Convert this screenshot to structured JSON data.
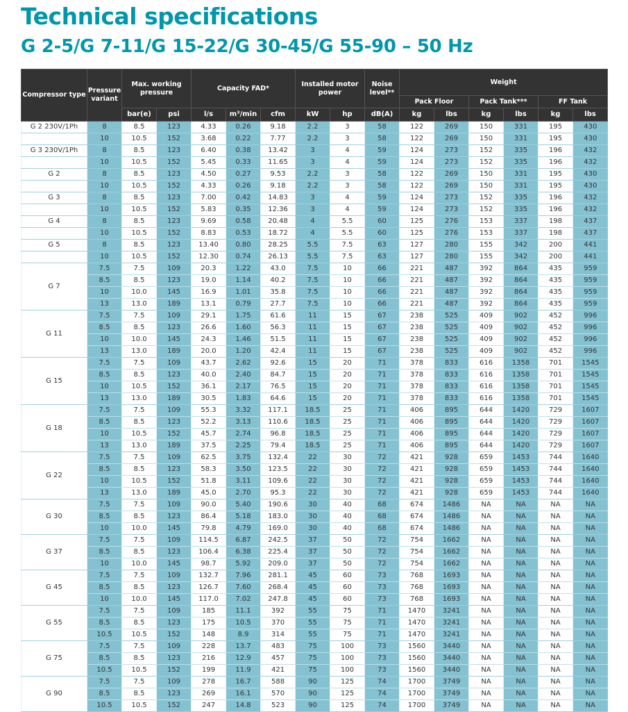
{
  "title": "Technical specifications",
  "subtitle": "G 2-5/G 7-11/G 15-22/G 30-45/G 55-90 – 50 Hz",
  "colors": {
    "accent": "#0097ad",
    "header_bg": "#333333",
    "shaded_column": "#84c1d1"
  },
  "header": {
    "compressor_type": "Compressor type",
    "pressure_variant": "Pressure variant",
    "max_working_pressure": "Max. working pressure",
    "capacity_fad": "Capacity FAD*",
    "installed_motor_power": "Installed motor power",
    "noise_level": "Noise level**",
    "weight": "Weight",
    "pack_floor": "Pack Floor",
    "pack_tank": "Pack Tank***",
    "ff_tank": "FF Tank",
    "units": [
      "bar(e)",
      "psi",
      "l/s",
      "m³/min",
      "cfm",
      "kW",
      "hp",
      "dB(A)",
      "kg",
      "lbs",
      "kg",
      "lbs",
      "kg",
      "lbs"
    ]
  },
  "groups": [
    {
      "type": "G 2 230V/1Ph",
      "rows": [
        [
          "8",
          "8.5",
          "123",
          "4.33",
          "0.26",
          "9.18",
          "2.2",
          "3",
          "58",
          "122",
          "269",
          "150",
          "331",
          "195",
          "430"
        ]
      ]
    },
    {
      "type": "",
      "rows": [
        [
          "10",
          "10.5",
          "152",
          "3.68",
          "0.22",
          "7.77",
          "2.2",
          "3",
          "58",
          "122",
          "269",
          "150",
          "331",
          "195",
          "430"
        ]
      ]
    },
    {
      "type": "G 3 230V/1Ph",
      "rows": [
        [
          "8",
          "8.5",
          "123",
          "6.40",
          "0.38",
          "13.42",
          "3",
          "4",
          "59",
          "124",
          "273",
          "152",
          "335",
          "196",
          "432"
        ]
      ]
    },
    {
      "type": "",
      "rows": [
        [
          "10",
          "10.5",
          "152",
          "5.45",
          "0.33",
          "11.65",
          "3",
          "4",
          "59",
          "124",
          "273",
          "152",
          "335",
          "196",
          "432"
        ]
      ]
    },
    {
      "type": "G 2",
      "rows": [
        [
          "8",
          "8.5",
          "123",
          "4.50",
          "0.27",
          "9.53",
          "2.2",
          "3",
          "58",
          "122",
          "269",
          "150",
          "331",
          "195",
          "430"
        ]
      ]
    },
    {
      "type": "",
      "rows": [
        [
          "10",
          "10.5",
          "152",
          "4.33",
          "0.26",
          "9.18",
          "2.2",
          "3",
          "58",
          "122",
          "269",
          "150",
          "331",
          "195",
          "430"
        ]
      ]
    },
    {
      "type": "G 3",
      "rows": [
        [
          "8",
          "8.5",
          "123",
          "7.00",
          "0.42",
          "14.83",
          "3",
          "4",
          "59",
          "124",
          "273",
          "152",
          "335",
          "196",
          "432"
        ]
      ]
    },
    {
      "type": "",
      "rows": [
        [
          "10",
          "10.5",
          "152",
          "5.83",
          "0.35",
          "12.36",
          "3",
          "4",
          "59",
          "124",
          "273",
          "152",
          "335",
          "196",
          "432"
        ]
      ]
    },
    {
      "type": "G 4",
      "rows": [
        [
          "8",
          "8.5",
          "123",
          "9.69",
          "0.58",
          "20.48",
          "4",
          "5.5",
          "60",
          "125",
          "276",
          "153",
          "337",
          "198",
          "437"
        ]
      ]
    },
    {
      "type": "",
      "rows": [
        [
          "10",
          "10.5",
          "152",
          "8.83",
          "0.53",
          "18.72",
          "4",
          "5.5",
          "60",
          "125",
          "276",
          "153",
          "337",
          "198",
          "437"
        ]
      ]
    },
    {
      "type": "G 5",
      "rows": [
        [
          "8",
          "8.5",
          "123",
          "13.40",
          "0.80",
          "28.25",
          "5.5",
          "7.5",
          "63",
          "127",
          "280",
          "155",
          "342",
          "200",
          "441"
        ]
      ]
    },
    {
      "type": "",
      "rows": [
        [
          "10",
          "10.5",
          "152",
          "12.30",
          "0.74",
          "26.13",
          "5.5",
          "7.5",
          "63",
          "127",
          "280",
          "155",
          "342",
          "200",
          "441"
        ]
      ]
    },
    {
      "type": "G 7",
      "rows": [
        [
          "7.5",
          "7.5",
          "109",
          "20.3",
          "1.22",
          "43.0",
          "7.5",
          "10",
          "66",
          "221",
          "487",
          "392",
          "864",
          "435",
          "959"
        ],
        [
          "8.5",
          "8.5",
          "123",
          "19.0",
          "1.14",
          "40.2",
          "7.5",
          "10",
          "66",
          "221",
          "487",
          "392",
          "864",
          "435",
          "959"
        ],
        [
          "10",
          "10.0",
          "145",
          "16.9",
          "1.01",
          "35.8",
          "7.5",
          "10",
          "66",
          "221",
          "487",
          "392",
          "864",
          "435",
          "959"
        ],
        [
          "13",
          "13.0",
          "189",
          "13.1",
          "0.79",
          "27.7",
          "7.5",
          "10",
          "66",
          "221",
          "487",
          "392",
          "864",
          "435",
          "959"
        ]
      ]
    },
    {
      "type": "G 11",
      "rows": [
        [
          "7.5",
          "7.5",
          "109",
          "29.1",
          "1.75",
          "61.6",
          "11",
          "15",
          "67",
          "238",
          "525",
          "409",
          "902",
          "452",
          "996"
        ],
        [
          "8.5",
          "8.5",
          "123",
          "26.6",
          "1.60",
          "56.3",
          "11",
          "15",
          "67",
          "238",
          "525",
          "409",
          "902",
          "452",
          "996"
        ],
        [
          "10",
          "10.0",
          "145",
          "24.3",
          "1.46",
          "51.5",
          "11",
          "15",
          "67",
          "238",
          "525",
          "409",
          "902",
          "452",
          "996"
        ],
        [
          "13",
          "13.0",
          "189",
          "20.0",
          "1.20",
          "42.4",
          "11",
          "15",
          "67",
          "238",
          "525",
          "409",
          "902",
          "452",
          "996"
        ]
      ]
    },
    {
      "type": "G 15",
      "rows": [
        [
          "7.5",
          "7.5",
          "109",
          "43.7",
          "2.62",
          "92.6",
          "15",
          "20",
          "71",
          "378",
          "833",
          "616",
          "1358",
          "701",
          "1545"
        ],
        [
          "8.5",
          "8.5",
          "123",
          "40.0",
          "2.40",
          "84.7",
          "15",
          "20",
          "71",
          "378",
          "833",
          "616",
          "1358",
          "701",
          "1545"
        ],
        [
          "10",
          "10.5",
          "152",
          "36.1",
          "2.17",
          "76.5",
          "15",
          "20",
          "71",
          "378",
          "833",
          "616",
          "1358",
          "701",
          "1545"
        ],
        [
          "13",
          "13.0",
          "189",
          "30.5",
          "1.83",
          "64.6",
          "15",
          "20",
          "71",
          "378",
          "833",
          "616",
          "1358",
          "701",
          "1545"
        ]
      ]
    },
    {
      "type": "G 18",
      "rows": [
        [
          "7.5",
          "7.5",
          "109",
          "55.3",
          "3.32",
          "117.1",
          "18.5",
          "25",
          "71",
          "406",
          "895",
          "644",
          "1420",
          "729",
          "1607"
        ],
        [
          "8.5",
          "8.5",
          "123",
          "52.2",
          "3.13",
          "110.6",
          "18.5",
          "25",
          "71",
          "406",
          "895",
          "644",
          "1420",
          "729",
          "1607"
        ],
        [
          "10",
          "10.5",
          "152",
          "45.7",
          "2.74",
          "96.8",
          "18.5",
          "25",
          "71",
          "406",
          "895",
          "644",
          "1420",
          "729",
          "1607"
        ],
        [
          "13",
          "13.0",
          "189",
          "37.5",
          "2.25",
          "79.4",
          "18.5",
          "25",
          "71",
          "406",
          "895",
          "644",
          "1420",
          "729",
          "1607"
        ]
      ]
    },
    {
      "type": "G 22",
      "rows": [
        [
          "7.5",
          "7.5",
          "109",
          "62.5",
          "3.75",
          "132.4",
          "22",
          "30",
          "72",
          "421",
          "928",
          "659",
          "1453",
          "744",
          "1640"
        ],
        [
          "8.5",
          "8.5",
          "123",
          "58.3",
          "3.50",
          "123.5",
          "22",
          "30",
          "72",
          "421",
          "928",
          "659",
          "1453",
          "744",
          "1640"
        ],
        [
          "10",
          "10.5",
          "152",
          "51.8",
          "3.11",
          "109.6",
          "22",
          "30",
          "72",
          "421",
          "928",
          "659",
          "1453",
          "744",
          "1640"
        ],
        [
          "13",
          "13.0",
          "189",
          "45.0",
          "2.70",
          "95.3",
          "22",
          "30",
          "72",
          "421",
          "928",
          "659",
          "1453",
          "744",
          "1640"
        ]
      ]
    },
    {
      "type": "G 30",
      "rows": [
        [
          "7.5",
          "7.5",
          "109",
          "90.0",
          "5.40",
          "190.6",
          "30",
          "40",
          "68",
          "674",
          "1486",
          "NA",
          "NA",
          "NA",
          "NA"
        ],
        [
          "8.5",
          "8.5",
          "123",
          "86.4",
          "5.18",
          "183.0",
          "30",
          "40",
          "68",
          "674",
          "1486",
          "NA",
          "NA",
          "NA",
          "NA"
        ],
        [
          "10",
          "10.0",
          "145",
          "79.8",
          "4.79",
          "169.0",
          "30",
          "40",
          "68",
          "674",
          "1486",
          "NA",
          "NA",
          "NA",
          "NA"
        ]
      ]
    },
    {
      "type": "G 37",
      "rows": [
        [
          "7.5",
          "7.5",
          "109",
          "114.5",
          "6.87",
          "242.5",
          "37",
          "50",
          "72",
          "754",
          "1662",
          "NA",
          "NA",
          "NA",
          "NA"
        ],
        [
          "8.5",
          "8.5",
          "123",
          "106.4",
          "6.38",
          "225.4",
          "37",
          "50",
          "72",
          "754",
          "1662",
          "NA",
          "NA",
          "NA",
          "NA"
        ],
        [
          "10",
          "10.0",
          "145",
          "98.7",
          "5.92",
          "209.0",
          "37",
          "50",
          "72",
          "754",
          "1662",
          "NA",
          "NA",
          "NA",
          "NA"
        ]
      ]
    },
    {
      "type": "G 45",
      "rows": [
        [
          "7.5",
          "7.5",
          "109",
          "132.7",
          "7.96",
          "281.1",
          "45",
          "60",
          "73",
          "768",
          "1693",
          "NA",
          "NA",
          "NA",
          "NA"
        ],
        [
          "8.5",
          "8.5",
          "123",
          "126.7",
          "7.60",
          "268.4",
          "45",
          "60",
          "73",
          "768",
          "1693",
          "NA",
          "NA",
          "NA",
          "NA"
        ],
        [
          "10",
          "10.0",
          "145",
          "117.0",
          "7.02",
          "247.8",
          "45",
          "60",
          "73",
          "768",
          "1693",
          "NA",
          "NA",
          "NA",
          "NA"
        ]
      ]
    },
    {
      "type": "G 55",
      "rows": [
        [
          "7.5",
          "7.5",
          "109",
          "185",
          "11.1",
          "392",
          "55",
          "75",
          "71",
          "1470",
          "3241",
          "NA",
          "NA",
          "NA",
          "NA"
        ],
        [
          "8.5",
          "8.5",
          "123",
          "175",
          "10.5",
          "370",
          "55",
          "75",
          "71",
          "1470",
          "3241",
          "NA",
          "NA",
          "NA",
          "NA"
        ],
        [
          "10.5",
          "10.5",
          "152",
          "148",
          "8.9",
          "314",
          "55",
          "75",
          "71",
          "1470",
          "3241",
          "NA",
          "NA",
          "NA",
          "NA"
        ]
      ]
    },
    {
      "type": "G 75",
      "rows": [
        [
          "7.5",
          "7.5",
          "109",
          "228",
          "13.7",
          "483",
          "75",
          "100",
          "73",
          "1560",
          "3440",
          "NA",
          "NA",
          "NA",
          "NA"
        ],
        [
          "8.5",
          "8.5",
          "123",
          "216",
          "12.9",
          "457",
          "75",
          "100",
          "73",
          "1560",
          "3440",
          "NA",
          "NA",
          "NA",
          "NA"
        ],
        [
          "10.5",
          "10.5",
          "152",
          "199",
          "11.9",
          "421",
          "75",
          "100",
          "73",
          "1560",
          "3440",
          "NA",
          "NA",
          "NA",
          "NA"
        ]
      ]
    },
    {
      "type": "G 90",
      "rows": [
        [
          "7.5",
          "7.5",
          "109",
          "278",
          "16.7",
          "588",
          "90",
          "125",
          "74",
          "1700",
          "3749",
          "NA",
          "NA",
          "NA",
          "NA"
        ],
        [
          "8.5",
          "8.5",
          "123",
          "269",
          "16.1",
          "570",
          "90",
          "125",
          "74",
          "1700",
          "3749",
          "NA",
          "NA",
          "NA",
          "NA"
        ],
        [
          "10.5",
          "10.5",
          "152",
          "247",
          "14.8",
          "523",
          "90",
          "125",
          "74",
          "1700",
          "3749",
          "NA",
          "NA",
          "NA",
          "NA"
        ]
      ]
    }
  ]
}
